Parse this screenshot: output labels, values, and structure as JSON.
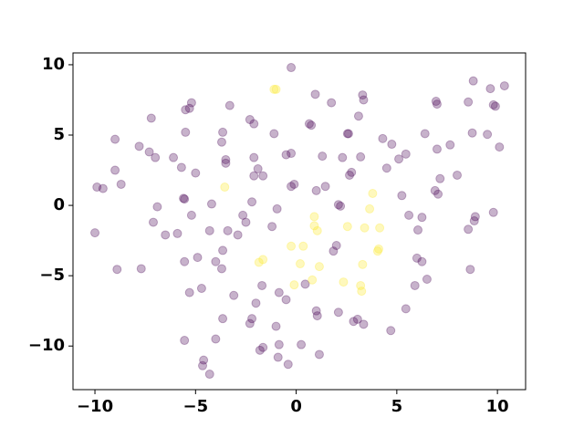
{
  "chart_data": {
    "type": "scatter",
    "alpha": 0.3,
    "xlim": [
      -11.09,
      11.4
    ],
    "ylim": [
      -13.1,
      10.84
    ],
    "xticks": [
      {
        "value": -10,
        "label": "−10"
      },
      {
        "value": -5,
        "label": "−5"
      },
      0,
      5,
      10
    ],
    "yticks": [
      {
        "value": -10,
        "label": "−10"
      },
      {
        "value": -5,
        "label": "−5"
      },
      0,
      5,
      10
    ],
    "series": [
      {
        "color": "#440154",
        "x": [
          -0.25,
          -10.0,
          -9.9,
          -9.6,
          -9.0,
          -9.0,
          -8.7,
          -8.9,
          -7.7,
          -7.8,
          -7.2,
          -7.3,
          -7.0,
          -6.9,
          -7.1,
          -6.5,
          -6.1,
          -5.9,
          -5.7,
          -5.6,
          -5.55,
          -5.5,
          -5.5,
          -5.2,
          -5.3,
          -5.55,
          -5.55,
          -5.3,
          -5.2,
          -5.0,
          -4.9,
          -4.7,
          -4.6,
          -4.65,
          -4.3,
          -4.3,
          -4.2,
          -4.0,
          -4.0,
          -3.65,
          -3.7,
          -3.65,
          -3.7,
          -3.65,
          -3.5,
          -3.5,
          -3.3,
          -3.4,
          -3.1,
          -2.9,
          -2.65,
          -2.5,
          -2.3,
          -2.1,
          -2.1,
          -2.2,
          -2.1,
          -1.9,
          -1.65,
          -2.3,
          -2.2,
          -2.0,
          -1.8,
          -1.7,
          -1.65,
          -1.2,
          -1.1,
          -0.95,
          -1.0,
          -0.85,
          -0.85,
          -0.9,
          -0.5,
          -0.4,
          -0.5,
          -0.25,
          -0.25,
          -0.1,
          0.25,
          0.45,
          0.65,
          0.75,
          0.95,
          1.0,
          1.0,
          1.05,
          1.15,
          1.3,
          1.45,
          1.75,
          1.85,
          2.0,
          2.1,
          2.2,
          2.1,
          2.3,
          2.55,
          2.6,
          2.65,
          2.75,
          2.85,
          3.1,
          3.3,
          3.35,
          3.05,
          3.35,
          3.2,
          4.3,
          4.5,
          4.75,
          4.7,
          5.1,
          5.25,
          5.45,
          5.45,
          5.6,
          5.9,
          6.0,
          6.25,
          6.05,
          6.25,
          6.4,
          6.5,
          6.9,
          6.95,
          7.0,
          7.0,
          7.05,
          7.15,
          7.65,
          8.0,
          8.55,
          8.55,
          8.65,
          8.75,
          8.8,
          8.85,
          8.9,
          9.5,
          9.65,
          9.8,
          9.9,
          9.8,
          10.1,
          10.35
        ],
        "y": [
          9.8,
          -1.95,
          1.3,
          1.2,
          4.7,
          2.5,
          1.5,
          -4.55,
          -4.5,
          4.2,
          6.2,
          3.8,
          3.4,
          -0.1,
          -1.2,
          -2.1,
          3.4,
          -2.0,
          2.7,
          0.5,
          0.45,
          5.2,
          6.8,
          7.3,
          6.9,
          -9.6,
          -4.0,
          -6.2,
          -0.7,
          2.3,
          -3.7,
          -5.9,
          -11.0,
          -11.4,
          -12.0,
          -1.8,
          0.1,
          -9.5,
          -4.0,
          5.2,
          4.5,
          -3.2,
          -4.5,
          -8.05,
          3.25,
          3.0,
          7.1,
          -1.8,
          -6.4,
          -2.1,
          -0.7,
          -1.2,
          6.1,
          5.8,
          3.4,
          0.25,
          2.1,
          2.6,
          2.1,
          -8.4,
          -8.05,
          -6.95,
          -10.3,
          -5.7,
          -10.1,
          -1.5,
          5.1,
          -0.25,
          -8.6,
          -6.2,
          -9.9,
          -10.8,
          3.6,
          -11.3,
          -6.7,
          3.7,
          1.35,
          1.5,
          -9.9,
          -5.6,
          5.8,
          5.7,
          7.9,
          1.05,
          -7.5,
          -7.85,
          -10.6,
          3.5,
          1.35,
          7.3,
          -3.25,
          -2.85,
          0.05,
          -0.05,
          -7.6,
          3.4,
          5.1,
          5.1,
          2.15,
          2.35,
          -8.25,
          6.35,
          7.85,
          7.5,
          -8.1,
          -8.45,
          3.45,
          4.75,
          2.65,
          4.35,
          -8.9,
          3.3,
          0.7,
          3.65,
          -7.35,
          -0.7,
          -5.7,
          -3.75,
          -4.0,
          -1.75,
          -0.85,
          5.1,
          -5.25,
          1.05,
          7.4,
          7.2,
          4.0,
          0.8,
          1.9,
          4.3,
          2.15,
          7.35,
          -1.7,
          -4.55,
          5.15,
          8.85,
          -1.1,
          -0.8,
          5.05,
          8.3,
          7.15,
          7.05,
          -0.5,
          4.15,
          8.5
        ]
      },
      {
        "color": "#fde725",
        "x": [
          -1.1,
          -1.0,
          -3.55,
          -1.85,
          -1.65,
          -0.25,
          0.35,
          0.2,
          -0.1,
          0.8,
          0.9,
          0.9,
          1.05,
          1.15,
          2.35,
          2.55,
          3.3,
          3.2,
          3.25,
          3.4,
          3.65,
          3.8,
          4.1,
          4.05,
          4.15
        ],
        "y": [
          8.25,
          8.25,
          1.3,
          -4.05,
          -3.85,
          -2.9,
          -2.9,
          -4.15,
          -5.65,
          -5.3,
          -0.8,
          -1.45,
          -1.8,
          -4.35,
          -5.45,
          -1.5,
          -4.2,
          -5.7,
          -6.1,
          -1.6,
          -0.25,
          0.85,
          -3.1,
          -3.25,
          -1.6
        ]
      }
    ]
  }
}
